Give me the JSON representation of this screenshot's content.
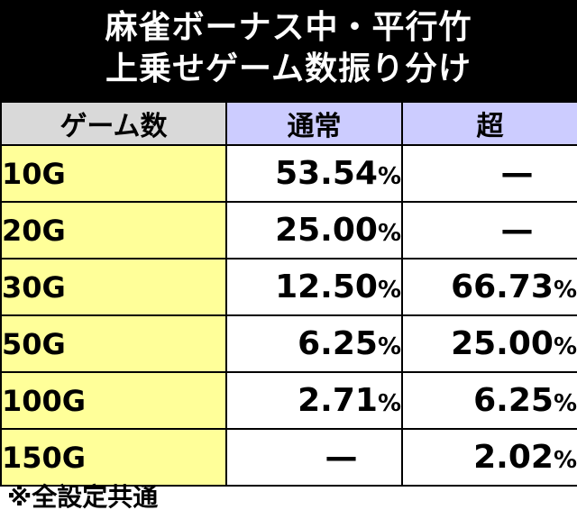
{
  "title": {
    "line1": "麻雀ボーナス中・平行竹",
    "line2": "上乗せゲーム数振り分け"
  },
  "headers": [
    "ゲーム数",
    "通常",
    "超"
  ],
  "rows": [
    {
      "label": "10G",
      "normal": "53.54",
      "super": "—"
    },
    {
      "label": "20G",
      "normal": "25.00",
      "super": "—"
    },
    {
      "label": "30G",
      "normal": "12.50",
      "super": "66.73"
    },
    {
      "label": "50G",
      "normal": "6.25",
      "super": "25.00"
    },
    {
      "label": "100G",
      "normal": "2.71",
      "super": "6.25"
    },
    {
      "label": "150G",
      "normal": "—",
      "super": "2.02"
    }
  ],
  "percent_sign": "%",
  "note": "※全設定共通",
  "colors": {
    "title_bg": "#000000",
    "header_label_bg": "#d9d9d9",
    "header_col_bg": "#ccccff",
    "row_label_bg": "#ffff99"
  }
}
